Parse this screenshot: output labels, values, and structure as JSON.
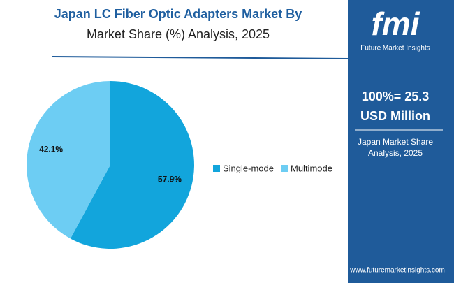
{
  "chart_data": {
    "type": "pie",
    "title": [
      "Japan LC Fiber Optic Adapters Market By",
      "Market Share (%) Analysis, 2025"
    ],
    "categories": [
      "Single-mode",
      "Multimode"
    ],
    "values": [
      57.9,
      42.1
    ],
    "value_labels": [
      "57.9%",
      "42.1%"
    ],
    "colors": [
      "#12a5dc",
      "#6dcdf3"
    ],
    "legend": "right"
  },
  "sidebar": {
    "logo": "fmi",
    "brand": "Future Market Insights",
    "total": [
      "100%= 25.3",
      "USD Million"
    ],
    "caption": [
      "Japan Market Share",
      "Analysis, 2025"
    ],
    "url": "www.futuremarketinsights.com"
  }
}
